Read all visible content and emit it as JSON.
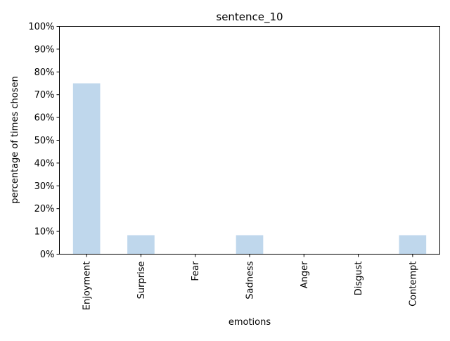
{
  "chart_data": {
    "type": "bar",
    "title": "sentence_10",
    "xlabel": "emotions",
    "ylabel": "percentage of times chosen",
    "categories": [
      "Enjoyment",
      "Surprise",
      "Fear",
      "Sadness",
      "Anger",
      "Disgust",
      "Contempt"
    ],
    "values": [
      75,
      8.33,
      0,
      8.33,
      0,
      0,
      8.33
    ],
    "ylim": [
      0,
      100
    ],
    "yticks": [
      "0%",
      "10%",
      "20%",
      "30%",
      "40%",
      "50%",
      "60%",
      "70%",
      "80%",
      "90%",
      "100%"
    ],
    "bar_color": "#bfd7ec",
    "grid": false,
    "legend": "none"
  }
}
